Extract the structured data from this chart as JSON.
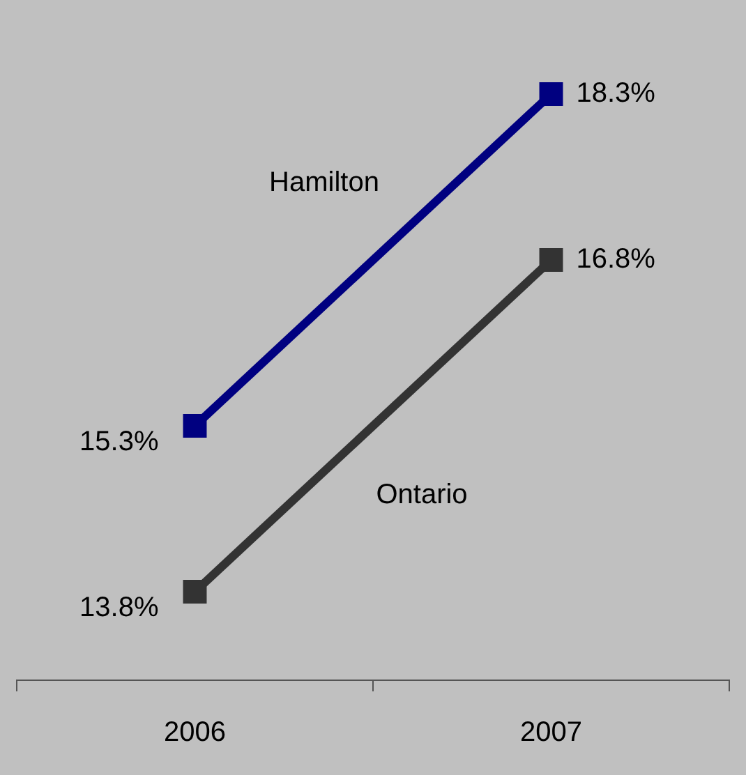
{
  "chart_data": {
    "type": "line",
    "categories": [
      "2006",
      "2007"
    ],
    "series": [
      {
        "name": "Hamilton",
        "color": "#000080",
        "values": [
          15.3,
          18.3
        ],
        "value_labels": [
          "15.3%",
          "18.3%"
        ]
      },
      {
        "name": "Ontario",
        "color": "#333333",
        "values": [
          13.8,
          16.8
        ],
        "value_labels": [
          "13.8%",
          "16.8%"
        ]
      }
    ],
    "tick_labels": "x",
    "grid": false,
    "legend": false,
    "marker": "square",
    "line_style": "solid"
  }
}
